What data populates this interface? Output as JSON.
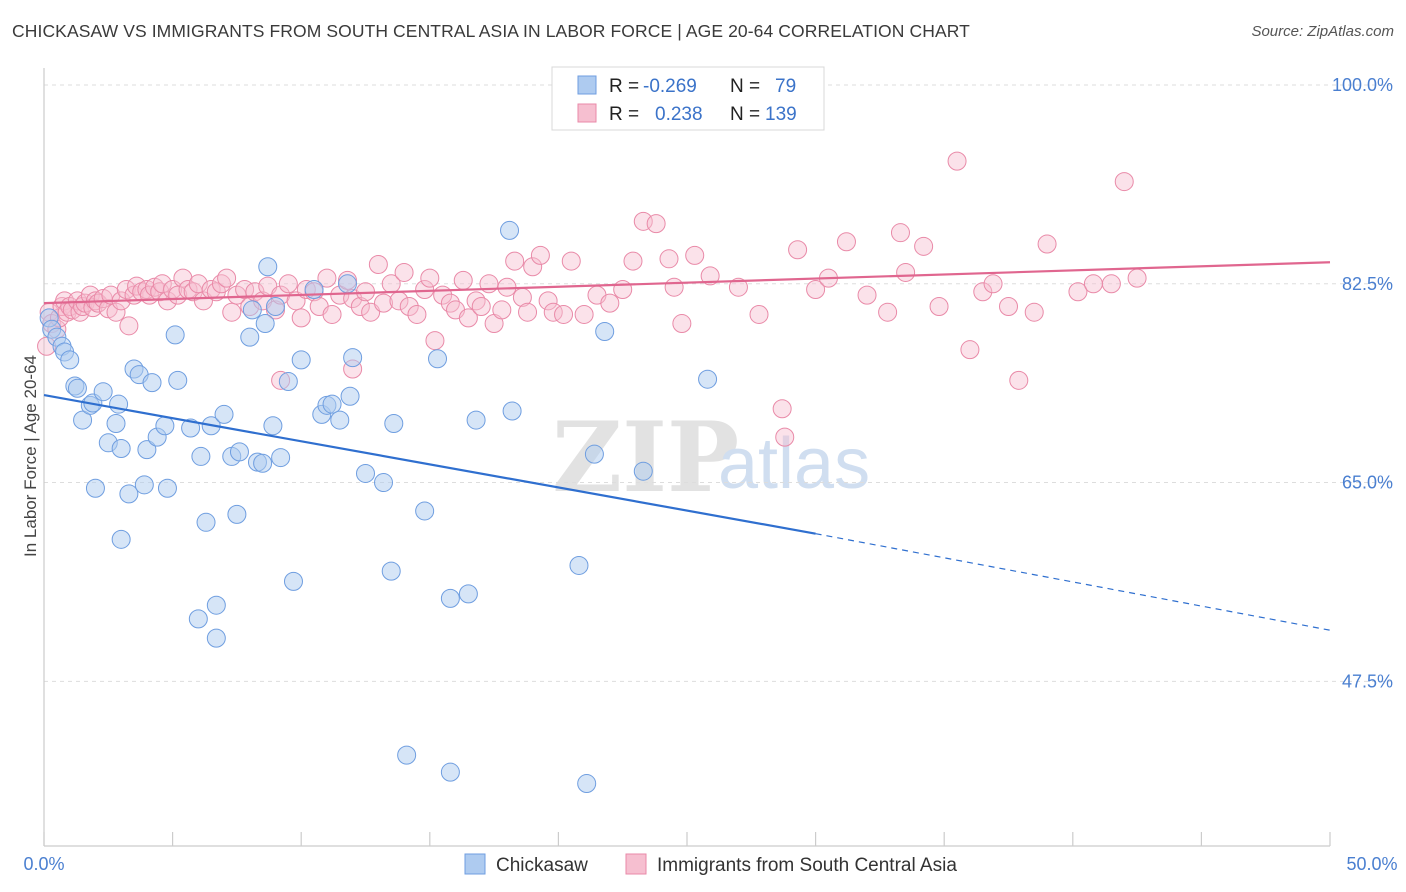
{
  "title": "CHICKASAW VS IMMIGRANTS FROM SOUTH CENTRAL ASIA IN LABOR FORCE | AGE 20-64 CORRELATION CHART",
  "source": "Source: ZipAtlas.com",
  "watermark": {
    "zip": "ZIP",
    "atlas": "atlas"
  },
  "colors": {
    "blue_fill": "#aecbf0",
    "blue_stroke": "#6f9ee0",
    "blue_line": "#2f6fcf",
    "pink_fill": "#f6bfd0",
    "pink_stroke": "#e98aa8",
    "pink_line": "#e0668f",
    "axis_tick": "#4a7fd0",
    "grid": "#dddddd"
  },
  "chart_data": {
    "type": "scatter",
    "xlabel": "",
    "ylabel": "In Labor Force | Age 20-64",
    "xlim": [
      0,
      50
    ],
    "ylim": [
      33,
      101.5
    ],
    "x_tick_labels": [
      {
        "value": 0,
        "label": "0.0%"
      },
      {
        "value": 50,
        "label": "50.0%"
      }
    ],
    "y_ticks": [
      {
        "value": 100,
        "label": "100.0%"
      },
      {
        "value": 82.5,
        "label": "82.5%"
      },
      {
        "value": 65,
        "label": "65.0%"
      },
      {
        "value": 47.5,
        "label": "47.5%"
      }
    ],
    "grid": "horizontal dashed",
    "legend": {
      "placement": "top-center",
      "rows": [
        {
          "r_label": "R =",
          "r_value": "-0.269",
          "n_label": "N =",
          "n_value": "79"
        },
        {
          "r_label": "R =",
          "r_value": "0.238",
          "n_label": "N =",
          "n_value": "139"
        }
      ]
    },
    "bottom_legend": [
      "Chickasaw",
      "Immigrants from South Central Asia"
    ],
    "series": [
      {
        "name": "Chickasaw",
        "color": "#6f9ee0",
        "trend": {
          "x_start": 0,
          "y_start": 72.7,
          "x_solid_end": 30,
          "y_solid_end": 60.5,
          "x_end": 50,
          "y_end": 52.0
        },
        "points": [
          [
            0.2,
            79.5
          ],
          [
            0.3,
            78.5
          ],
          [
            0.5,
            77.8
          ],
          [
            0.7,
            77.0
          ],
          [
            0.8,
            76.5
          ],
          [
            1.0,
            75.8
          ],
          [
            1.2,
            73.5
          ],
          [
            1.3,
            73.3
          ],
          [
            1.5,
            70.5
          ],
          [
            1.8,
            71.8
          ],
          [
            1.9,
            72.0
          ],
          [
            2.0,
            64.5
          ],
          [
            2.3,
            73.0
          ],
          [
            2.5,
            68.5
          ],
          [
            2.8,
            70.2
          ],
          [
            2.9,
            71.9
          ],
          [
            3.0,
            68.0
          ],
          [
            3.3,
            64.0
          ],
          [
            3.5,
            75.0
          ],
          [
            3.7,
            74.5
          ],
          [
            3.9,
            64.8
          ],
          [
            4.0,
            67.9
          ],
          [
            4.2,
            73.8
          ],
          [
            4.4,
            69.0
          ],
          [
            4.8,
            64.5
          ],
          [
            4.7,
            70.0
          ],
          [
            5.1,
            78.0
          ],
          [
            5.2,
            74.0
          ],
          [
            5.7,
            69.8
          ],
          [
            6.0,
            53.0
          ],
          [
            6.1,
            67.3
          ],
          [
            6.3,
            61.5
          ],
          [
            6.5,
            70.0
          ],
          [
            6.7,
            51.3
          ],
          [
            6.7,
            54.2
          ],
          [
            7.0,
            71.0
          ],
          [
            7.3,
            67.3
          ],
          [
            7.5,
            62.2
          ],
          [
            7.6,
            67.7
          ],
          [
            8.0,
            77.8
          ],
          [
            8.1,
            80.2
          ],
          [
            8.3,
            66.8
          ],
          [
            8.5,
            66.7
          ],
          [
            8.6,
            79.0
          ],
          [
            8.7,
            84.0
          ],
          [
            8.9,
            70.0
          ],
          [
            9.0,
            80.5
          ],
          [
            9.2,
            67.2
          ],
          [
            9.5,
            73.9
          ],
          [
            9.7,
            56.3
          ],
          [
            10.0,
            75.8
          ],
          [
            10.5,
            82.0
          ],
          [
            10.8,
            71.0
          ],
          [
            11.0,
            71.8
          ],
          [
            11.2,
            71.9
          ],
          [
            11.5,
            70.5
          ],
          [
            11.8,
            82.5
          ],
          [
            11.9,
            72.6
          ],
          [
            12.0,
            76.0
          ],
          [
            12.5,
            65.8
          ],
          [
            13.2,
            65.0
          ],
          [
            13.5,
            57.2
          ],
          [
            13.6,
            70.2
          ],
          [
            14.1,
            41.0
          ],
          [
            14.8,
            62.5
          ],
          [
            15.3,
            75.9
          ],
          [
            15.8,
            54.8
          ],
          [
            15.8,
            39.5
          ],
          [
            16.5,
            55.2
          ],
          [
            16.8,
            70.5
          ],
          [
            18.1,
            87.2
          ],
          [
            18.2,
            71.3
          ],
          [
            20.8,
            57.7
          ],
          [
            21.1,
            38.5
          ],
          [
            21.4,
            67.5
          ],
          [
            21.8,
            78.3
          ],
          [
            23.3,
            66.0
          ],
          [
            25.8,
            74.1
          ],
          [
            3.0,
            60.0
          ]
        ]
      },
      {
        "name": "Immigrants from South Central Asia",
        "color": "#e98aa8",
        "trend": {
          "x_start": 0,
          "y_start": 80.8,
          "x_end": 50,
          "y_end": 84.4
        },
        "points": [
          [
            0.1,
            77.0
          ],
          [
            0.2,
            80.0
          ],
          [
            0.3,
            79.0
          ],
          [
            0.5,
            78.5
          ],
          [
            0.6,
            79.5
          ],
          [
            0.7,
            80.5
          ],
          [
            0.8,
            81.0
          ],
          [
            0.9,
            80.0
          ],
          [
            1.0,
            80.5
          ],
          [
            1.1,
            80.2
          ],
          [
            1.3,
            81.0
          ],
          [
            1.4,
            80.0
          ],
          [
            1.5,
            80.5
          ],
          [
            1.6,
            80.8
          ],
          [
            1.8,
            81.5
          ],
          [
            1.9,
            80.4
          ],
          [
            2.0,
            81.0
          ],
          [
            2.1,
            80.8
          ],
          [
            2.3,
            81.2
          ],
          [
            2.5,
            80.3
          ],
          [
            2.6,
            81.5
          ],
          [
            2.8,
            80.0
          ],
          [
            3.0,
            81.0
          ],
          [
            3.2,
            82.0
          ],
          [
            3.3,
            78.8
          ],
          [
            3.5,
            81.5
          ],
          [
            3.6,
            82.3
          ],
          [
            3.8,
            81.8
          ],
          [
            4.0,
            82.0
          ],
          [
            4.1,
            81.5
          ],
          [
            4.3,
            82.2
          ],
          [
            4.5,
            81.8
          ],
          [
            4.6,
            82.5
          ],
          [
            4.8,
            81.0
          ],
          [
            5.0,
            82.0
          ],
          [
            5.2,
            81.5
          ],
          [
            5.4,
            83.0
          ],
          [
            5.6,
            82.0
          ],
          [
            5.8,
            81.8
          ],
          [
            6.0,
            82.5
          ],
          [
            6.2,
            81.0
          ],
          [
            6.5,
            82.0
          ],
          [
            6.7,
            81.8
          ],
          [
            6.9,
            82.5
          ],
          [
            7.1,
            83.0
          ],
          [
            7.3,
            80.0
          ],
          [
            7.5,
            81.5
          ],
          [
            7.8,
            82.0
          ],
          [
            8.0,
            80.5
          ],
          [
            8.2,
            81.8
          ],
          [
            8.5,
            81.0
          ],
          [
            8.7,
            82.3
          ],
          [
            9.0,
            80.2
          ],
          [
            9.2,
            81.5
          ],
          [
            9.5,
            82.5
          ],
          [
            9.8,
            81.0
          ],
          [
            10.0,
            79.5
          ],
          [
            10.2,
            82.0
          ],
          [
            10.5,
            81.8
          ],
          [
            10.7,
            80.5
          ],
          [
            11.0,
            83.0
          ],
          [
            11.2,
            79.8
          ],
          [
            11.5,
            81.5
          ],
          [
            11.8,
            82.8
          ],
          [
            12.0,
            81.2
          ],
          [
            12.3,
            80.5
          ],
          [
            12.5,
            81.8
          ],
          [
            12.7,
            80.0
          ],
          [
            13.0,
            84.2
          ],
          [
            13.2,
            80.8
          ],
          [
            13.5,
            82.5
          ],
          [
            13.8,
            81.0
          ],
          [
            14.0,
            83.5
          ],
          [
            14.2,
            80.5
          ],
          [
            14.5,
            79.8
          ],
          [
            14.8,
            82.0
          ],
          [
            15.0,
            83.0
          ],
          [
            15.2,
            77.5
          ],
          [
            15.5,
            81.5
          ],
          [
            15.8,
            80.8
          ],
          [
            16.0,
            80.2
          ],
          [
            16.3,
            82.8
          ],
          [
            16.5,
            79.5
          ],
          [
            16.8,
            81.0
          ],
          [
            17.0,
            80.5
          ],
          [
            17.3,
            82.5
          ],
          [
            17.5,
            79.0
          ],
          [
            17.8,
            80.2
          ],
          [
            18.0,
            82.2
          ],
          [
            18.3,
            84.5
          ],
          [
            18.6,
            81.3
          ],
          [
            18.8,
            80.0
          ],
          [
            19.0,
            84.0
          ],
          [
            19.3,
            85.0
          ],
          [
            19.6,
            81.0
          ],
          [
            19.8,
            80.0
          ],
          [
            20.2,
            79.8
          ],
          [
            20.5,
            84.5
          ],
          [
            21.0,
            79.8
          ],
          [
            21.5,
            81.5
          ],
          [
            22.0,
            80.8
          ],
          [
            22.5,
            82.0
          ],
          [
            22.9,
            84.5
          ],
          [
            23.3,
            88.0
          ],
          [
            23.8,
            87.8
          ],
          [
            24.3,
            84.7
          ],
          [
            24.5,
            82.2
          ],
          [
            24.8,
            79.0
          ],
          [
            25.3,
            85.0
          ],
          [
            25.9,
            83.2
          ],
          [
            27.0,
            82.2
          ],
          [
            27.8,
            79.8
          ],
          [
            28.7,
            71.5
          ],
          [
            29.3,
            85.5
          ],
          [
            30.0,
            82.0
          ],
          [
            30.5,
            83.0
          ],
          [
            31.2,
            86.2
          ],
          [
            32.0,
            81.5
          ],
          [
            32.8,
            80.0
          ],
          [
            33.3,
            87.0
          ],
          [
            33.5,
            83.5
          ],
          [
            34.2,
            85.8
          ],
          [
            34.8,
            80.5
          ],
          [
            35.5,
            93.3
          ],
          [
            36.0,
            76.7
          ],
          [
            36.5,
            81.8
          ],
          [
            36.9,
            82.5
          ],
          [
            37.5,
            80.5
          ],
          [
            37.9,
            74.0
          ],
          [
            38.5,
            80.0
          ],
          [
            39.0,
            86.0
          ],
          [
            40.2,
            81.8
          ],
          [
            40.8,
            82.5
          ],
          [
            41.5,
            82.5
          ],
          [
            42.0,
            91.5
          ],
          [
            42.5,
            83.0
          ],
          [
            28.8,
            69.0
          ],
          [
            12.0,
            75.0
          ],
          [
            9.2,
            74.0
          ]
        ]
      }
    ]
  }
}
